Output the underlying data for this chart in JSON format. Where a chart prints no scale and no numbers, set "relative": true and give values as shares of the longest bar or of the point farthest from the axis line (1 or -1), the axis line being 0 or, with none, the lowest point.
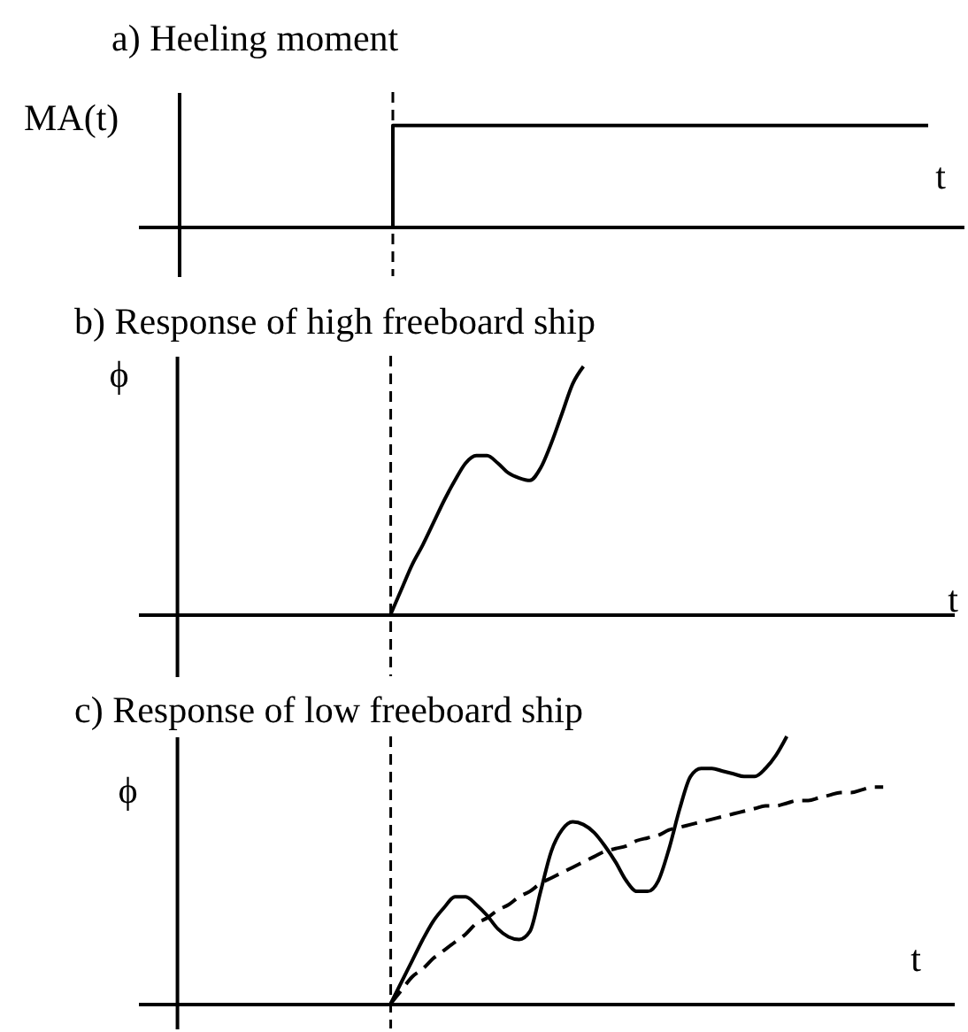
{
  "chart_data": [
    {
      "type": "step",
      "title": "a) Heeling moment",
      "ylabel": "MA(t)",
      "xlabel": "t",
      "relative": true,
      "categories": [
        null,
        null,
        null,
        null,
        null,
        null,
        null,
        null,
        null,
        null,
        null,
        null,
        null,
        null,
        null,
        null,
        null,
        null,
        null,
        null,
        null,
        null,
        null,
        null,
        null,
        null,
        null,
        null,
        null,
        null,
        null,
        null,
        null,
        null,
        null,
        null,
        null,
        null,
        null,
        null,
        null,
        null,
        null,
        null,
        null,
        null,
        null,
        null,
        null,
        null,
        null,
        null,
        null,
        null,
        null,
        null,
        null,
        null,
        null,
        null,
        null,
        null,
        null,
        null,
        null,
        null,
        null,
        null,
        null,
        null,
        null,
        null,
        null,
        null
      ],
      "series": [
        {
          "color": "#000000",
          "values": [
            null,
            null,
            null,
            null,
            null,
            null,
            null,
            null,
            null,
            null,
            null,
            null,
            null,
            null,
            null,
            null,
            null,
            null,
            null,
            null,
            0,
            1,
            1,
            1,
            1,
            1,
            1,
            1,
            1,
            1,
            1,
            1,
            1,
            1,
            1,
            1,
            1,
            1,
            1,
            1,
            1,
            1,
            1,
            1,
            1,
            1,
            1,
            1,
            1,
            1,
            1,
            1,
            1,
            1,
            1,
            1,
            1,
            1,
            1,
            1,
            1,
            1,
            1,
            1,
            1,
            1,
            1,
            1,
            1,
            1,
            1,
            null,
            null,
            null
          ]
        }
      ]
    },
    {
      "type": "line",
      "title": "b) Response of high freeboard ship",
      "ylabel": "ϕ",
      "xlabel": "t",
      "relative": true,
      "categories": [
        null,
        null,
        null,
        null,
        null,
        null,
        null,
        null,
        null,
        null,
        null,
        null,
        null,
        null,
        null,
        null,
        null,
        null,
        null,
        null,
        null,
        null,
        null,
        null,
        null,
        null,
        null,
        null,
        null,
        null,
        null,
        null,
        null,
        null,
        null,
        null,
        null,
        null,
        null,
        null,
        null,
        null,
        null,
        null,
        null,
        null,
        null,
        null,
        null,
        null,
        null,
        null,
        null,
        null,
        null,
        null,
        null,
        null,
        null,
        null,
        null,
        null,
        null,
        null,
        null,
        null,
        null,
        null,
        null,
        null,
        null,
        null,
        null
      ],
      "series": [
        {
          "color": "#000000",
          "values": [
            null,
            null,
            null,
            null,
            null,
            null,
            null,
            null,
            null,
            null,
            null,
            null,
            null,
            null,
            null,
            null,
            null,
            null,
            null,
            null,
            0,
            0.1,
            0.2,
            0.28,
            0.37,
            0.46,
            0.54,
            0.61,
            0.64,
            0.64,
            0.61,
            0.57,
            0.55,
            0.54,
            0.59,
            0.69,
            0.81,
            0.93,
            1,
            null,
            null,
            null,
            null,
            null,
            null,
            null,
            null,
            null,
            null,
            null,
            null,
            null,
            null,
            null,
            null,
            null,
            null,
            null,
            null,
            null,
            null,
            null,
            null,
            null,
            null,
            null,
            null,
            null,
            null,
            null,
            null,
            null,
            null
          ]
        }
      ]
    },
    {
      "type": "line",
      "title": "c) Response of low freeboard ship",
      "ylabel": "ϕ",
      "xlabel": "t",
      "relative": true,
      "categories": [
        null,
        null,
        null,
        null,
        null,
        null,
        null,
        null,
        null,
        null,
        null,
        null,
        null,
        null,
        null,
        null,
        null,
        null,
        null,
        null,
        null,
        null,
        null,
        null,
        null,
        null,
        null,
        null,
        null,
        null,
        null,
        null,
        null,
        null,
        null,
        null,
        null,
        null,
        null,
        null,
        null,
        null,
        null,
        null,
        null,
        null,
        null,
        null,
        null,
        null,
        null,
        null,
        null,
        null,
        null,
        null,
        null,
        null,
        null,
        null,
        null,
        null,
        null,
        null,
        null,
        null,
        null,
        null,
        null,
        null,
        null,
        null,
        null
      ],
      "series": [
        {
          "color": "#000000",
          "values": [
            null,
            null,
            null,
            null,
            null,
            null,
            null,
            null,
            null,
            null,
            null,
            null,
            null,
            null,
            null,
            null,
            null,
            null,
            null,
            null,
            0,
            0.08,
            0.16,
            0.24,
            0.31,
            0.36,
            0.4,
            0.4,
            0.37,
            0.33,
            0.28,
            0.25,
            0.24,
            0.27,
            0.42,
            0.57,
            0.65,
            0.68,
            0.67,
            0.64,
            0.59,
            0.53,
            0.46,
            0.42,
            0.42,
            0.46,
            0.58,
            0.73,
            0.85,
            0.88,
            0.88,
            0.87,
            0.86,
            0.85,
            0.85,
            0.88,
            0.93,
            1,
            null,
            null,
            null,
            null,
            null,
            null,
            null,
            null,
            null,
            null,
            null,
            null,
            null,
            null,
            null
          ]
        },
        {
          "color": "#000000",
          "line_style": "dashed",
          "values": [
            null,
            null,
            null,
            null,
            null,
            null,
            null,
            null,
            null,
            null,
            null,
            null,
            null,
            null,
            null,
            null,
            null,
            null,
            null,
            null,
            0,
            0.05,
            0.1,
            0.13,
            0.17,
            0.2,
            0.23,
            0.26,
            0.3,
            0.32,
            0.35,
            0.37,
            0.4,
            0.42,
            0.45,
            0.47,
            0.49,
            0.51,
            0.53,
            0.55,
            0.57,
            0.58,
            0.59,
            0.61,
            0.62,
            0.63,
            0.65,
            0.66,
            0.67,
            0.68,
            0.69,
            0.7,
            0.71,
            0.72,
            0.73,
            0.74,
            0.74,
            0.75,
            0.76,
            0.76,
            0.77,
            0.78,
            0.79,
            0.79,
            0.8,
            0.81,
            0.81,
            null,
            null,
            null,
            null,
            null,
            null
          ]
        }
      ]
    }
  ]
}
